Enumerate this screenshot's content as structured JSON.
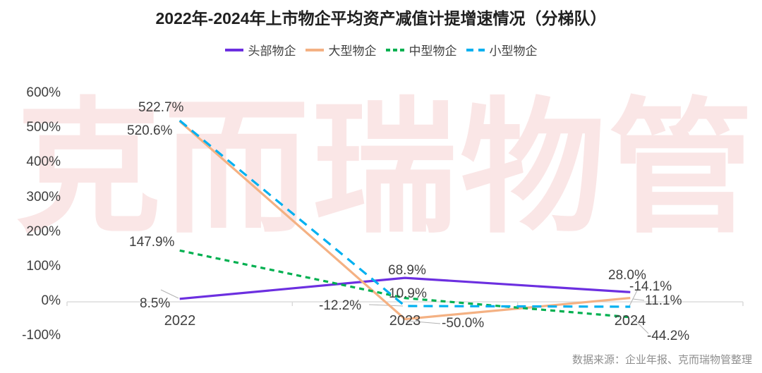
{
  "title": "2022年-2024年上市物企平均资产减值计提增速情况（分梯队）",
  "watermark": "克而瑞物管",
  "source": "数据来源：企业年报、克而瑞物管整理",
  "colors": {
    "head": "#6C2FE0",
    "large": "#F4B183",
    "medium": "#00B050",
    "small": "#00B0F0",
    "axis_line": "#D9D9D9",
    "leader_line": "#B3B3B3",
    "label_text": "#3F3F3F",
    "watermark_pink": "#FAE6E6"
  },
  "chart_data": {
    "type": "line",
    "categories": [
      "2022",
      "2023",
      "2024"
    ],
    "series": [
      {
        "name": "头部物企",
        "color": "#6C2FE0",
        "dash": "solid",
        "values": [
          8.5,
          68.9,
          28.0
        ],
        "labels": [
          "8.5%",
          "68.9%",
          "28.0%"
        ]
      },
      {
        "name": "大型物企",
        "color": "#F4B183",
        "dash": "solid",
        "values": [
          520.6,
          -50.0,
          11.1
        ],
        "labels": [
          "520.6%",
          "-50.0%",
          "11.1%"
        ]
      },
      {
        "name": "中型物企",
        "color": "#00B050",
        "dash": "short-dash",
        "values": [
          147.9,
          10.9,
          -44.2
        ],
        "labels": [
          "147.9%",
          "10.9%",
          "-44.2%"
        ]
      },
      {
        "name": "小型物企",
        "color": "#00B0F0",
        "dash": "long-dash",
        "values": [
          522.7,
          -12.2,
          -14.1
        ],
        "labels": [
          "522.7%",
          "-12.2%",
          "-14.1%"
        ]
      }
    ],
    "ylim": [
      -100,
      600
    ],
    "y_ticks": [
      "600%",
      "500%",
      "400%",
      "300%",
      "200%",
      "100%",
      "0%",
      "-100%"
    ],
    "xlabel": "",
    "ylabel": "",
    "grid": "off",
    "legend_position": "top"
  }
}
